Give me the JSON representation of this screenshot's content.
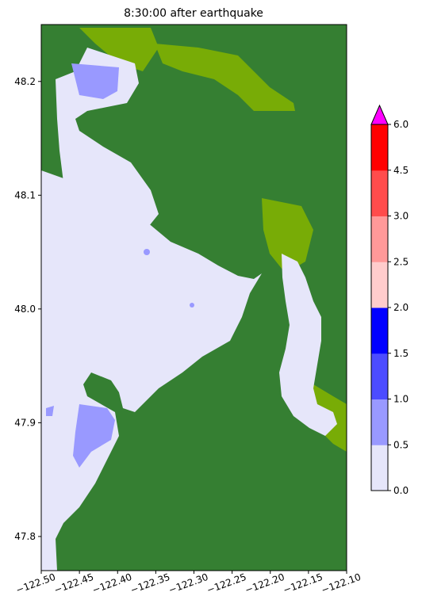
{
  "title": "8:30:00 after earthquake",
  "map": {
    "x_ticks": [
      "−122.50",
      "−122.45",
      "−122.40",
      "−122.35",
      "−122.30",
      "−122.25",
      "−122.20",
      "−122.15",
      "−122.10"
    ],
    "y_ticks": [
      "48.2",
      "48.1",
      "48.0",
      "47.9",
      "47.8"
    ],
    "x_range": [
      -122.5,
      -122.1
    ],
    "y_range": [
      47.77,
      48.25
    ],
    "colors": {
      "land": "#357f32",
      "land_shallow": "#78ac06",
      "water": "#e6e6fa"
    }
  },
  "colorbar": {
    "ticks": [
      "0.0",
      "0.5",
      "1.0",
      "1.5",
      "2.0",
      "2.5",
      "3.0",
      "4.5",
      "6.0"
    ],
    "levels": [
      0.0,
      0.5,
      1.0,
      1.5,
      2.0,
      2.5,
      3.0,
      4.5,
      6.0
    ],
    "colors": [
      "#e6e6fa",
      "#9999ff",
      "#4c4cff",
      "#0000ff",
      "#ffcccc",
      "#ff9999",
      "#ff4c4c",
      "#ff0000"
    ],
    "extend_color": "#ff00ff"
  }
}
